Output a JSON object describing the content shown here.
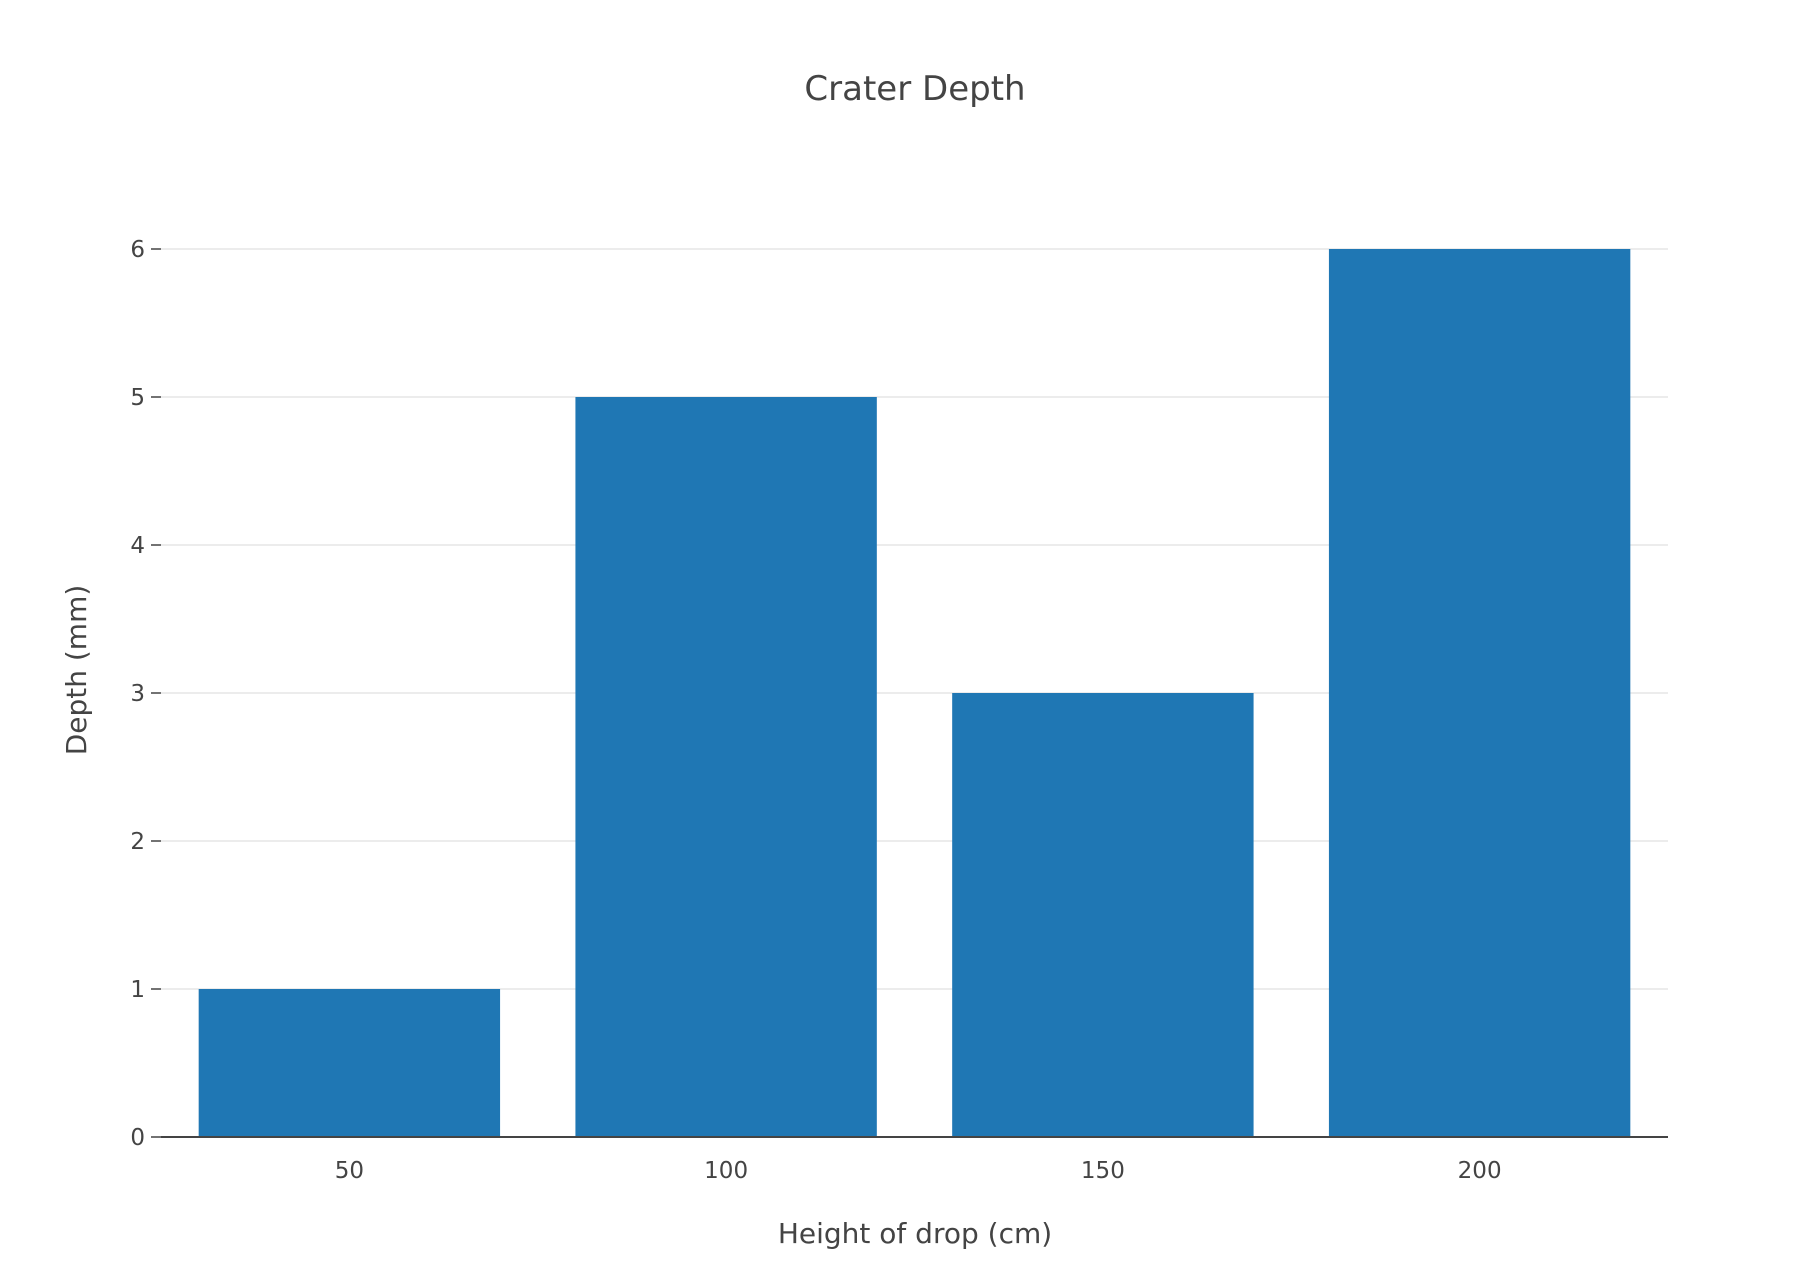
{
  "chart_data": {
    "type": "bar",
    "title": "Crater Depth",
    "xlabel": "Height of drop (cm)",
    "ylabel": "Depth (mm)",
    "categories": [
      "50",
      "100",
      "150",
      "200"
    ],
    "values": [
      1,
      5,
      3,
      6
    ],
    "ylim": [
      0,
      6
    ],
    "yticks": [
      "0",
      "1",
      "2",
      "3",
      "4",
      "5",
      "6"
    ],
    "grid": true,
    "legend": "none",
    "colors": {
      "bar": "#1f77b4",
      "grid": "#e6e6e6",
      "axis": "#444444",
      "text": "#444444"
    }
  }
}
